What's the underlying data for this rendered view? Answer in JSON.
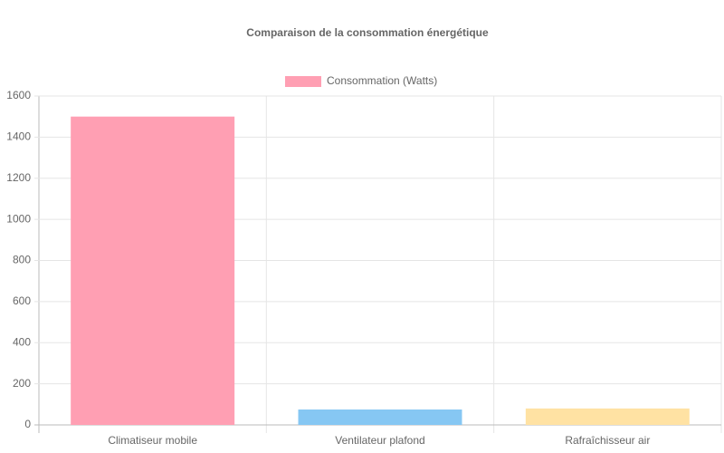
{
  "chart_data": {
    "type": "bar",
    "title": "Comparaison de la consommation énergétique",
    "categories": [
      "Climatiseur mobile",
      "Ventilateur plafond",
      "Rafraîchisseur air"
    ],
    "series": [
      {
        "name": "Consommation (Watts)",
        "colors": [
          "#ff9fb3",
          "#86c7f3",
          "#ffe2a3"
        ],
        "values": [
          1500,
          75,
          80
        ]
      }
    ],
    "ylim": [
      0,
      1600
    ],
    "yticks": [
      0,
      200,
      400,
      600,
      800,
      1000,
      1200,
      1400,
      1600
    ],
    "grid": true
  }
}
